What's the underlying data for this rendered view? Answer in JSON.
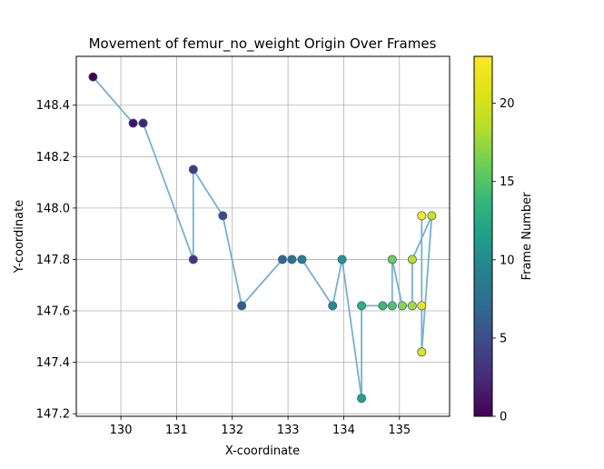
{
  "chart_data": {
    "type": "scatter",
    "title": "Movement of femur_no_weight Origin Over Frames",
    "xlabel": "X-coordinate",
    "ylabel": "Y-coordinate",
    "colorbar_label": "Frame Number",
    "xlim": [
      129.2,
      135.9
    ],
    "ylim": [
      147.19,
      148.59
    ],
    "clim": [
      0,
      23
    ],
    "grid": true,
    "x_ticks": [
      130,
      131,
      132,
      133,
      134,
      135
    ],
    "x_tick_labels": [
      "130",
      "131",
      "132",
      "133",
      "134",
      "135"
    ],
    "y_ticks": [
      147.2,
      147.4,
      147.6,
      147.8,
      148.0,
      148.2,
      148.4
    ],
    "y_tick_labels": [
      "147.2",
      "147.4",
      "147.6",
      "147.8",
      "148.0",
      "148.2",
      "148.4"
    ],
    "colorbar_ticks": [
      0,
      5,
      10,
      15,
      20
    ],
    "colorbar_tick_labels": [
      "0",
      "5",
      "10",
      "15",
      "20"
    ],
    "colormap": "viridis",
    "line_color": "#77afd3",
    "points": [
      {
        "frame": 0,
        "x": 129.5,
        "y": 148.51
      },
      {
        "frame": 1,
        "x": 130.22,
        "y": 148.33
      },
      {
        "frame": 2,
        "x": 130.4,
        "y": 148.33
      },
      {
        "frame": 3,
        "x": 131.3,
        "y": 147.8
      },
      {
        "frame": 4,
        "x": 131.3,
        "y": 148.15
      },
      {
        "frame": 5,
        "x": 131.83,
        "y": 147.97
      },
      {
        "frame": 6,
        "x": 132.17,
        "y": 147.62
      },
      {
        "frame": 7,
        "x": 132.9,
        "y": 147.8
      },
      {
        "frame": 8,
        "x": 133.07,
        "y": 147.8
      },
      {
        "frame": 9,
        "x": 133.25,
        "y": 147.8
      },
      {
        "frame": 10,
        "x": 133.8,
        "y": 147.62
      },
      {
        "frame": 11,
        "x": 133.97,
        "y": 147.8
      },
      {
        "frame": 12,
        "x": 134.32,
        "y": 147.26
      },
      {
        "frame": 13,
        "x": 134.32,
        "y": 147.62
      },
      {
        "frame": 14,
        "x": 134.7,
        "y": 147.62
      },
      {
        "frame": 15,
        "x": 134.87,
        "y": 147.62
      },
      {
        "frame": 16,
        "x": 134.87,
        "y": 147.8
      },
      {
        "frame": 17,
        "x": 135.05,
        "y": 147.62
      },
      {
        "frame": 18,
        "x": 135.23,
        "y": 147.62
      },
      {
        "frame": 19,
        "x": 135.23,
        "y": 147.8
      },
      {
        "frame": 20,
        "x": 135.58,
        "y": 147.97
      },
      {
        "frame": 21,
        "x": 135.4,
        "y": 147.44
      },
      {
        "frame": 22,
        "x": 135.4,
        "y": 147.62
      },
      {
        "frame": 23,
        "x": 135.4,
        "y": 147.97
      }
    ]
  }
}
